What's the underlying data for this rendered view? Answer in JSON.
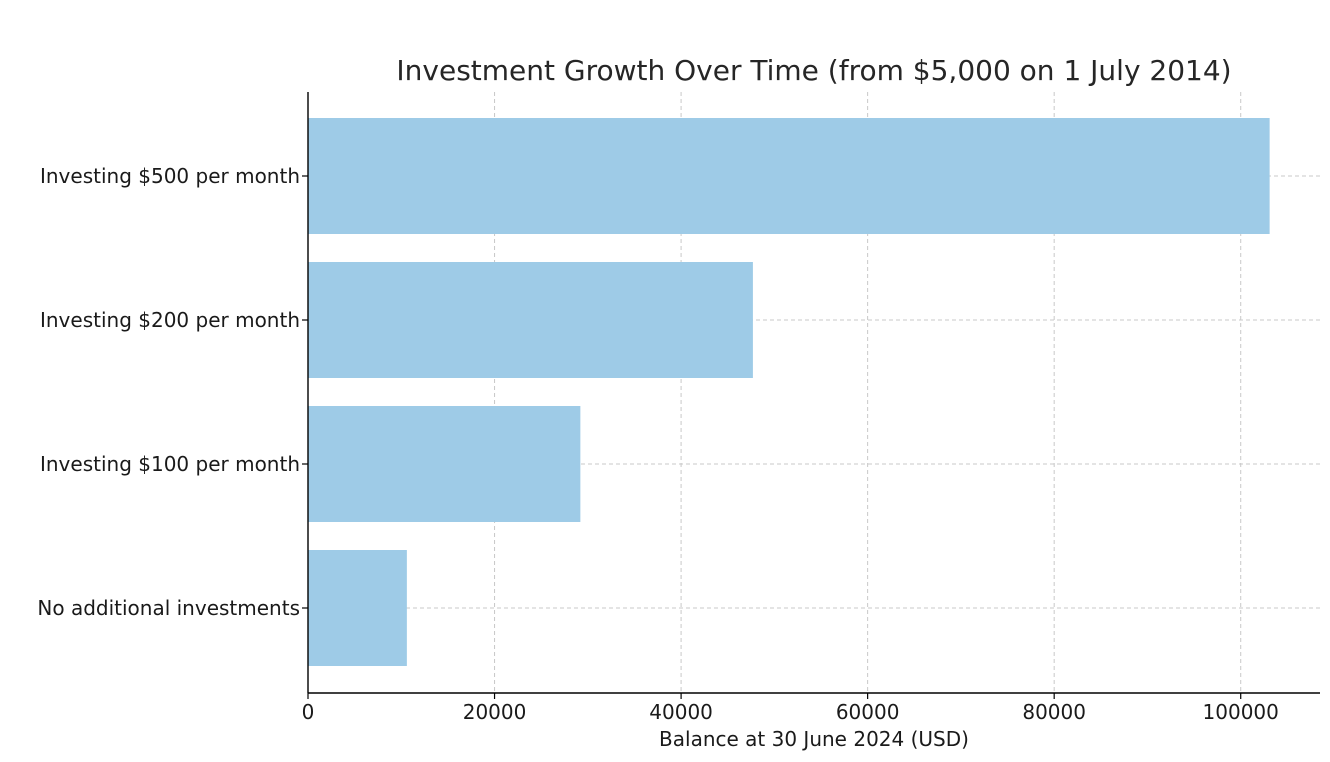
{
  "chart_data": {
    "type": "bar",
    "orientation": "horizontal",
    "title": "Investment Growth Over Time (from $5,000 on 1 July 2014)",
    "xlabel": "Balance at 30 June 2024 (USD)",
    "ylabel": "",
    "categories": [
      "No additional investments",
      "Investing $100 per month",
      "Investing $200 per month",
      "Investing $500 per month"
    ],
    "values": [
      10600,
      29200,
      47700,
      103100
    ],
    "xlim": [
      0,
      108500
    ],
    "xticks": [
      0,
      20000,
      40000,
      60000,
      80000,
      100000
    ],
    "xtick_labels": [
      "0",
      "20000",
      "40000",
      "60000",
      "80000",
      "100000"
    ],
    "grid": true,
    "bar_color": "#9ecbe7"
  }
}
